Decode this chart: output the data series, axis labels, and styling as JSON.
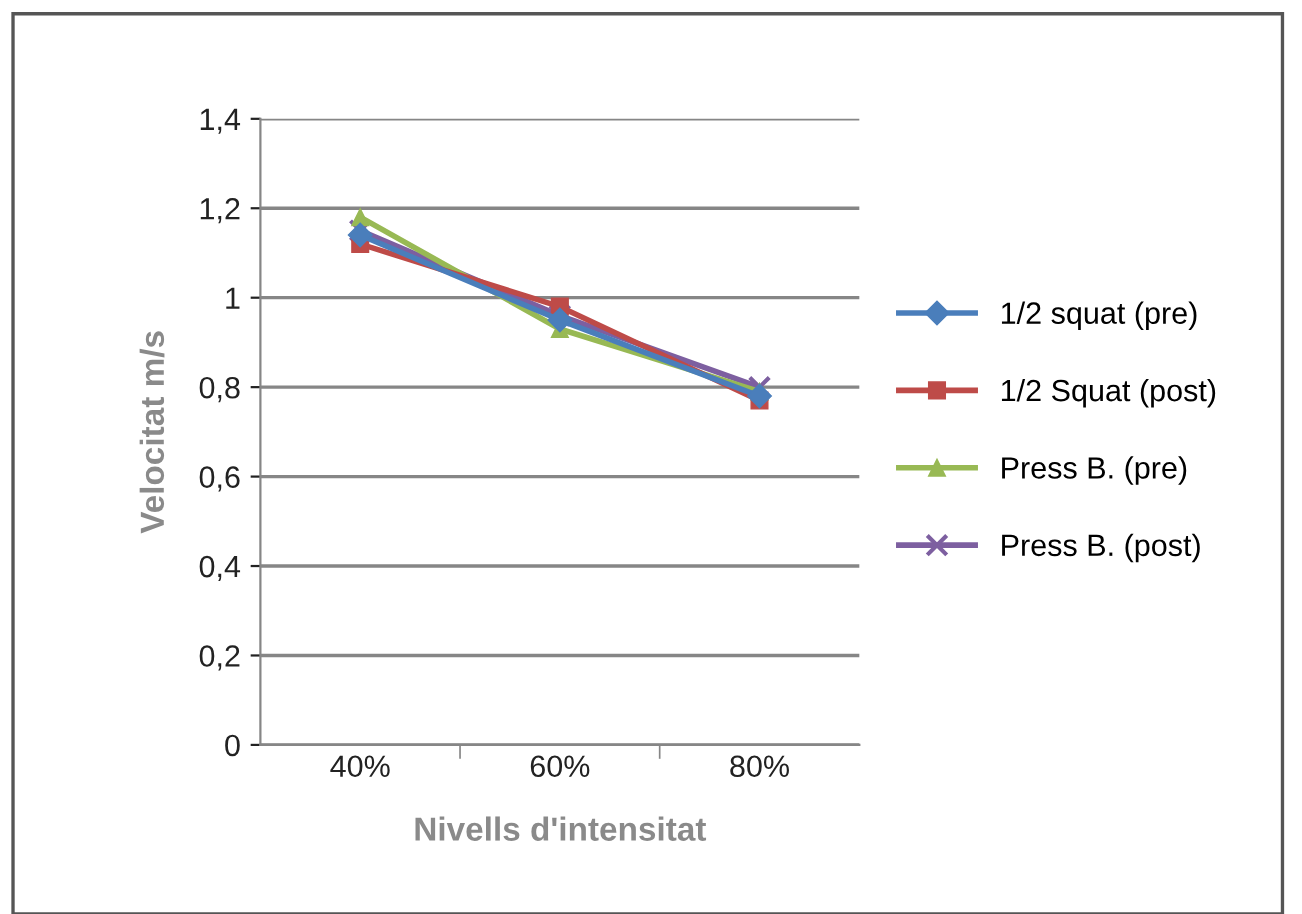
{
  "chart_data": {
    "type": "line",
    "xlabel": "Nivells d'intensitat",
    "ylabel": "Velocitat m/s",
    "categories": [
      "40%",
      "60%",
      "80%"
    ],
    "series": [
      {
        "name": "1/2 squat (pre)",
        "color": "#4a7ebb",
        "marker": "diamond",
        "values": [
          1.14,
          0.95,
          0.78
        ]
      },
      {
        "name": "1/2 Squat (post)",
        "color": "#be4b48",
        "marker": "square",
        "values": [
          1.12,
          0.98,
          0.77
        ]
      },
      {
        "name": "Press B. (pre)",
        "color": "#98b954",
        "marker": "triangle",
        "values": [
          1.18,
          0.93,
          0.79
        ]
      },
      {
        "name": "Press B. (post)",
        "color": "#7d5fa0",
        "marker": "cross",
        "values": [
          1.15,
          0.96,
          0.8
        ]
      }
    ],
    "ylim": [
      0,
      1.4
    ],
    "yticks": [
      0,
      {
        "value": 0.2,
        "label": "0,2"
      },
      {
        "value": 0.4,
        "label": "0,4"
      },
      {
        "value": 0.6,
        "label": "0,6"
      },
      {
        "value": 0.8,
        "label": "0,8"
      },
      1,
      {
        "value": 1.2,
        "label": "1,2"
      },
      {
        "value": 1.4,
        "label": "1,4"
      }
    ],
    "grid": "y",
    "legend": "right",
    "line_style": "solid"
  }
}
